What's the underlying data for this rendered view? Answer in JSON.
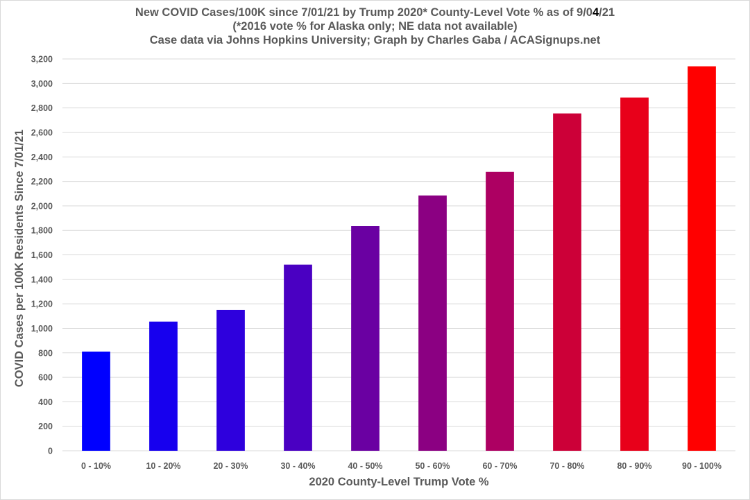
{
  "chart_data": {
    "type": "bar",
    "title_lines": [
      {
        "pre": "New COVID Cases/100K since 7/01/21 by Trump 2020* County-Level Vote % as of 9/0",
        "highlight": "4",
        "post": "/21"
      },
      {
        "pre": "(*2016 vote % for Alaska only; NE data not available)",
        "highlight": "",
        "post": ""
      },
      {
        "pre": "Case data via Johns Hopkins University; Graph by Charles Gaba / ACASignups.net",
        "highlight": "",
        "post": ""
      }
    ],
    "xlabel": "2020 County-Level Trump Vote %",
    "ylabel": "COVID Cases per 100K Residents Since 7/01/21",
    "categories": [
      "0 - 10%",
      "10 - 20%",
      "20 - 30%",
      "30 - 40%",
      "40 - 50%",
      "50 - 60%",
      "60 - 70%",
      "70 - 80%",
      "80 - 90%",
      "90 - 100%"
    ],
    "values": [
      810,
      1055,
      1150,
      1520,
      1835,
      2085,
      2278,
      2755,
      2885,
      3140
    ],
    "bar_colors": [
      "#0000ff",
      "#1700ee",
      "#2e00dd",
      "#4a00c2",
      "#6a00a2",
      "#8b0082",
      "#ad0062",
      "#cc0038",
      "#e8001a",
      "#ff0000"
    ],
    "ylim": [
      0,
      3200
    ],
    "ytick_step": 200,
    "ytick_labels": [
      "0",
      "200",
      "400",
      "600",
      "800",
      "1,000",
      "1,200",
      "1,400",
      "1,600",
      "1,800",
      "2,000",
      "2,200",
      "2,400",
      "2,600",
      "2,800",
      "3,000",
      "3,200"
    ],
    "grid": true,
    "gridline_color": "#d9d9d9",
    "text_color": "#595959",
    "legend": "none"
  }
}
